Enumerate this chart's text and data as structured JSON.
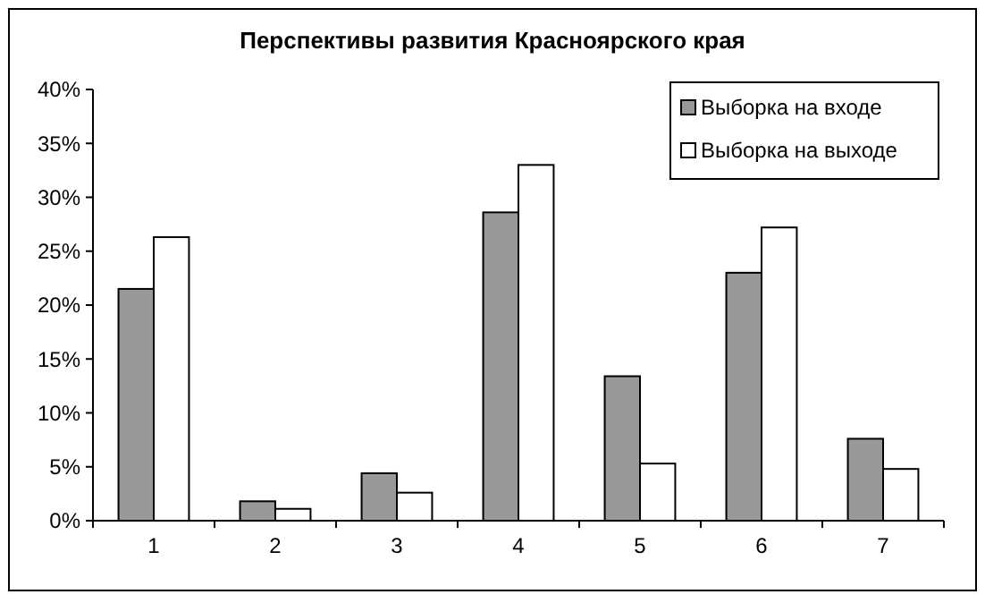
{
  "chart_data": {
    "type": "bar",
    "title": "Перспективы развития Красноярского края",
    "categories": [
      "1",
      "2",
      "3",
      "4",
      "5",
      "6",
      "7"
    ],
    "series": [
      {
        "name": "Выборка на входе",
        "color": "#999999",
        "values": [
          21.5,
          1.8,
          4.4,
          28.6,
          13.4,
          23.0,
          7.6
        ]
      },
      {
        "name": "Выборка на выходе",
        "color": "#ffffff",
        "values": [
          26.3,
          1.1,
          2.6,
          33.0,
          5.3,
          27.2,
          4.8
        ]
      }
    ],
    "ylim": [
      0,
      40
    ],
    "yticks": [
      {
        "value": 0,
        "label": "0%"
      },
      {
        "value": 5,
        "label": "5%"
      },
      {
        "value": 10,
        "label": "10%"
      },
      {
        "value": 15,
        "label": "15%"
      },
      {
        "value": 20,
        "label": "20%"
      },
      {
        "value": 25,
        "label": "25%"
      },
      {
        "value": 30,
        "label": "30%"
      },
      {
        "value": 35,
        "label": "35%"
      },
      {
        "value": 40,
        "label": "40%"
      }
    ],
    "grid": false,
    "legend": "top right"
  }
}
